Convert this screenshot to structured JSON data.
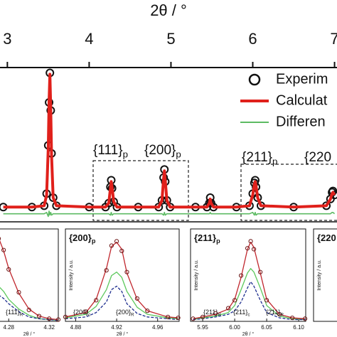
{
  "chart_data": [
    {
      "type": "line",
      "xlabel": "2θ / °",
      "xaxis": "top",
      "xlim": [
        2.91,
        7.03
      ],
      "xticks": [
        3,
        4,
        5,
        6,
        7
      ],
      "ylim": [
        -10,
        105
      ],
      "legend": "upper right",
      "x": [
        2.95,
        3.3,
        3.45,
        3.48,
        3.5,
        3.51,
        3.52,
        3.53,
        3.54,
        3.56,
        3.6,
        4.0,
        4.2,
        4.24,
        4.26,
        4.27,
        4.28,
        4.3,
        4.34,
        4.6,
        4.85,
        4.89,
        4.91,
        4.92,
        4.93,
        4.95,
        4.99,
        5.3,
        5.44,
        5.47,
        5.48,
        5.49,
        5.52,
        5.8,
        5.96,
        6.0,
        6.02,
        6.03,
        6.04,
        6.06,
        6.1,
        6.5,
        6.9,
        6.95,
        6.97,
        6.98,
        7.0
      ],
      "series": [
        {
          "name": "Experim",
          "color": "#111111",
          "marker": "circle",
          "values": [
            1,
            1,
            2,
            11,
            47,
            79,
            101,
            73,
            41,
            8,
            2,
            1,
            1,
            4,
            16,
            21,
            15,
            5,
            1,
            1,
            1,
            6,
            23,
            29,
            20,
            6,
            1,
            1,
            1,
            4,
            8,
            4,
            1,
            1,
            2,
            11,
            19,
            21,
            16,
            8,
            2,
            1,
            2,
            7,
            12,
            13,
            10
          ]
        },
        {
          "name": "Calculat",
          "color": "#e0201b",
          "values": [
            1,
            1,
            2,
            10,
            45,
            80,
            100,
            75,
            40,
            8,
            2,
            1,
            1,
            4,
            15,
            20,
            16,
            5,
            1,
            1,
            1,
            6,
            22,
            28,
            21,
            6,
            1,
            1,
            1,
            4,
            7,
            4,
            1,
            1,
            2,
            10,
            18,
            20,
            17,
            8,
            2,
            1,
            2,
            7,
            11,
            12,
            10
          ]
        },
        {
          "name": "Differen",
          "color": "#5dbb63",
          "values": [
            -4,
            -4,
            -4,
            -3,
            -6,
            -2,
            -5,
            -3,
            -5,
            -4,
            -4,
            -4,
            -4,
            -4,
            -5,
            -3,
            -5,
            -4,
            -4,
            -4,
            -4,
            -4,
            -5,
            -3,
            -5,
            -4,
            -4,
            -4,
            -4,
            -4,
            -3,
            -4,
            -4,
            -4,
            -4,
            -3,
            -5,
            -3,
            -5,
            -4,
            -4,
            -4,
            -4,
            -4,
            -3,
            -3,
            -4
          ]
        }
      ],
      "annotations": [
        {
          "text": "{111}",
          "sub": "p"
        },
        {
          "text": "{200}",
          "sub": "p"
        },
        {
          "text": "{211}",
          "sub": "p"
        },
        {
          "text": "{220"
        }
      ]
    },
    {
      "type": "line",
      "xlabel": "2θ / °",
      "xlim": [
        4.27,
        4.329
      ],
      "xticks": [
        4.28,
        4.32
      ],
      "ylim": [
        0,
        105
      ],
      "x": [
        4.27,
        4.275,
        4.28,
        4.29,
        4.3,
        4.31,
        4.32,
        4.329
      ],
      "series": [
        {
          "color": "#5cc85c",
          "values": [
            40,
            34,
            25,
            14,
            7,
            3,
            2,
            1
          ]
        },
        {
          "color": "#1f2f8f",
          "dash": true,
          "values": [
            30,
            26,
            20,
            11,
            5,
            3,
            2,
            1
          ]
        },
        {
          "color": "#c0262d",
          "values": [
            95,
            80,
            60,
            32,
            14,
            6,
            3,
            2
          ]
        },
        {
          "color": "#6b1414",
          "marker": "circle",
          "values": [
            94,
            81,
            59,
            33,
            13,
            6,
            3,
            2
          ]
        }
      ],
      "annotations": [
        {
          "text": "{111}",
          "sub": "R"
        }
      ]
    },
    {
      "type": "line",
      "title": {
        "text": "{200}",
        "sub": "p"
      },
      "xlabel": "2θ / °",
      "ylabel": "Intensity / a.u.",
      "xlim": [
        4.87,
        4.981
      ],
      "xticks": [
        4.88,
        4.92,
        4.96
      ],
      "ylim": [
        0,
        105
      ],
      "x": [
        4.87,
        4.89,
        4.9,
        4.91,
        4.915,
        4.92,
        4.925,
        4.93,
        4.94,
        4.95,
        4.97,
        4.98
      ],
      "series": [
        {
          "color": "#5cc85c",
          "values": [
            4,
            8,
            17,
            36,
            52,
            56,
            50,
            34,
            16,
            8,
            4,
            3
          ]
        },
        {
          "color": "#1f2f8f",
          "dash": true,
          "values": [
            3,
            5,
            10,
            22,
            36,
            40,
            34,
            20,
            9,
            5,
            3,
            2
          ]
        },
        {
          "color": "#c0262d",
          "values": [
            5,
            10,
            25,
            60,
            85,
            90,
            82,
            55,
            25,
            12,
            5,
            4
          ]
        },
        {
          "color": "#6b1414",
          "marker": "circle",
          "values": [
            5,
            11,
            24,
            58,
            86,
            91,
            80,
            56,
            26,
            12,
            5,
            4
          ]
        }
      ],
      "annotations": [
        {
          "text": "{200}",
          "sub": "c"
        },
        {
          "text": "{200}",
          "sub": "R"
        }
      ]
    },
    {
      "type": "line",
      "title": {
        "text": "{211}",
        "sub": "p"
      },
      "xlabel": "2θ / °",
      "ylabel": "Intensity / a.u.",
      "xlim": [
        5.931,
        6.111
      ],
      "xticks": [
        5.95,
        {
          "value": 6,
          "label": "6.00"
        },
        6.05,
        {
          "value": 6.1,
          "label": "6.10"
        }
      ],
      "ylim": [
        0,
        105
      ],
      "x": [
        5.935,
        5.95,
        5.97,
        5.99,
        6.0,
        6.01,
        6.02,
        6.025,
        6.03,
        6.04,
        6.05,
        6.07,
        6.09,
        6.11
      ],
      "series": [
        {
          "color": "#5cc85c",
          "values": [
            2,
            4,
            6,
            10,
            18,
            36,
            55,
            60,
            56,
            38,
            18,
            6,
            3,
            2
          ]
        },
        {
          "color": "#1f2f8f",
          "dash": true,
          "values": [
            2,
            3,
            5,
            8,
            12,
            22,
            38,
            45,
            40,
            24,
            10,
            4,
            2,
            2
          ]
        },
        {
          "color": "#c0262d",
          "values": [
            3,
            5,
            8,
            14,
            25,
            50,
            82,
            90,
            84,
            55,
            25,
            8,
            4,
            3
          ]
        },
        {
          "color": "#6b1414",
          "marker": "circle",
          "values": [
            3,
            5,
            9,
            15,
            24,
            52,
            83,
            91,
            82,
            56,
            24,
            8,
            4,
            3
          ]
        }
      ],
      "annotations": [
        {
          "text": "{211}",
          "sub": "R"
        },
        {
          "text": "{211}",
          "sub": "c"
        },
        {
          "text": "{2̄11}",
          "sub": "R"
        }
      ]
    },
    {
      "type": "line",
      "title": {
        "text": "{220"
      },
      "ylabel": "Intensity / a.u."
    }
  ]
}
